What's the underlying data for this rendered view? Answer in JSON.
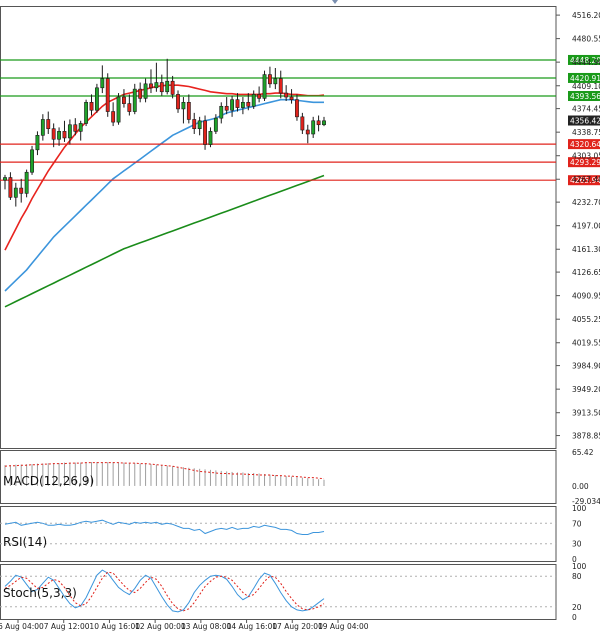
{
  "chart_data": {
    "type": "candlestick",
    "colors": {
      "bull": "#1fa12a",
      "bear": "#e0231c",
      "wick": "#1a1a1a",
      "ma_fast": "#e8231e",
      "ma_mid": "#3c95dc",
      "ma_slow": "#1a8c1a",
      "support": "#e0231c",
      "resistance": "#1a9a1a",
      "macd_hist": "#9e9e9e",
      "macd_signal": "#e0231c",
      "rsi": "#3c95dc",
      "stoch_main": "#3c95dc",
      "stoch_signal": "#e0231c",
      "grid_line": "#b0b0b0",
      "current_price_bg": "#222222"
    },
    "price_axis": {
      "ylim": [
        3860,
        4530
      ],
      "ticks": [
        "4516.20",
        "4480.55",
        "4444.90",
        "4409.10",
        "4374.45",
        "4338.75",
        "4303.05",
        "4267.40",
        "4232.70",
        "4197.00",
        "4161.30",
        "4126.65",
        "4090.95",
        "4055.25",
        "4019.55",
        "3984.90",
        "3949.20",
        "3913.50",
        "3878.85"
      ]
    },
    "current_price": {
      "label": "4356.42",
      "value": 4356.42
    },
    "levels": [
      {
        "label": "4448.20",
        "value": 4448.2,
        "kind": "resistance"
      },
      {
        "label": "4420.91",
        "value": 4420.91,
        "kind": "resistance"
      },
      {
        "label": "4393.56",
        "value": 4393.56,
        "kind": "resistance"
      },
      {
        "label": "4320.64",
        "value": 4320.64,
        "kind": "support"
      },
      {
        "label": "4293.29",
        "value": 4293.29,
        "kind": "support"
      },
      {
        "label": "4265.94",
        "value": 4265.94,
        "kind": "support"
      }
    ],
    "time_labels": [
      "6 Aug 04:00",
      "7 Aug 12:00",
      "10 Aug 16:00",
      "12 Aug 00:00",
      "13 Aug 08:00",
      "14 Aug 16:00",
      "17 Aug 20:00",
      "19 Aug 04:00"
    ],
    "candles": [
      {
        "o": 4266,
        "h": 4274,
        "l": 4252,
        "c": 4270
      },
      {
        "o": 4270,
        "h": 4278,
        "l": 4236,
        "c": 4240
      },
      {
        "o": 4240,
        "h": 4262,
        "l": 4226,
        "c": 4254
      },
      {
        "o": 4254,
        "h": 4268,
        "l": 4232,
        "c": 4246
      },
      {
        "o": 4246,
        "h": 4282,
        "l": 4240,
        "c": 4278
      },
      {
        "o": 4278,
        "h": 4318,
        "l": 4274,
        "c": 4312
      },
      {
        "o": 4312,
        "h": 4340,
        "l": 4304,
        "c": 4334
      },
      {
        "o": 4334,
        "h": 4366,
        "l": 4326,
        "c": 4358
      },
      {
        "o": 4358,
        "h": 4370,
        "l": 4336,
        "c": 4344
      },
      {
        "o": 4344,
        "h": 4352,
        "l": 4316,
        "c": 4328
      },
      {
        "o": 4328,
        "h": 4346,
        "l": 4318,
        "c": 4340
      },
      {
        "o": 4340,
        "h": 4356,
        "l": 4324,
        "c": 4330
      },
      {
        "o": 4330,
        "h": 4358,
        "l": 4320,
        "c": 4350
      },
      {
        "o": 4350,
        "h": 4360,
        "l": 4334,
        "c": 4340
      },
      {
        "o": 4340,
        "h": 4356,
        "l": 4326,
        "c": 4352
      },
      {
        "o": 4352,
        "h": 4388,
        "l": 4348,
        "c": 4384
      },
      {
        "o": 4384,
        "h": 4396,
        "l": 4364,
        "c": 4372
      },
      {
        "o": 4372,
        "h": 4412,
        "l": 4368,
        "c": 4406
      },
      {
        "o": 4406,
        "h": 4440,
        "l": 4398,
        "c": 4420
      },
      {
        "o": 4420,
        "h": 4428,
        "l": 4362,
        "c": 4370
      },
      {
        "o": 4370,
        "h": 4384,
        "l": 4348,
        "c": 4354
      },
      {
        "o": 4354,
        "h": 4398,
        "l": 4350,
        "c": 4392
      },
      {
        "o": 4392,
        "h": 4404,
        "l": 4376,
        "c": 4382
      },
      {
        "o": 4382,
        "h": 4396,
        "l": 4364,
        "c": 4370
      },
      {
        "o": 4370,
        "h": 4412,
        "l": 4366,
        "c": 4404
      },
      {
        "o": 4404,
        "h": 4414,
        "l": 4384,
        "c": 4390
      },
      {
        "o": 4390,
        "h": 4420,
        "l": 4384,
        "c": 4412
      },
      {
        "o": 4412,
        "h": 4434,
        "l": 4398,
        "c": 4406
      },
      {
        "o": 4406,
        "h": 4444,
        "l": 4400,
        "c": 4414
      },
      {
        "o": 4414,
        "h": 4426,
        "l": 4394,
        "c": 4400
      },
      {
        "o": 4400,
        "h": 4450,
        "l": 4396,
        "c": 4416
      },
      {
        "o": 4416,
        "h": 4424,
        "l": 4390,
        "c": 4396
      },
      {
        "o": 4396,
        "h": 4402,
        "l": 4368,
        "c": 4374
      },
      {
        "o": 4374,
        "h": 4392,
        "l": 4352,
        "c": 4384
      },
      {
        "o": 4384,
        "h": 4396,
        "l": 4352,
        "c": 4358
      },
      {
        "o": 4358,
        "h": 4368,
        "l": 4336,
        "c": 4344
      },
      {
        "o": 4344,
        "h": 4362,
        "l": 4334,
        "c": 4356
      },
      {
        "o": 4356,
        "h": 4364,
        "l": 4312,
        "c": 4320
      },
      {
        "o": 4320,
        "h": 4346,
        "l": 4316,
        "c": 4340
      },
      {
        "o": 4340,
        "h": 4366,
        "l": 4336,
        "c": 4360
      },
      {
        "o": 4360,
        "h": 4384,
        "l": 4352,
        "c": 4378
      },
      {
        "o": 4378,
        "h": 4392,
        "l": 4366,
        "c": 4372
      },
      {
        "o": 4372,
        "h": 4394,
        "l": 4362,
        "c": 4388
      },
      {
        "o": 4388,
        "h": 4398,
        "l": 4370,
        "c": 4376
      },
      {
        "o": 4376,
        "h": 4392,
        "l": 4366,
        "c": 4384
      },
      {
        "o": 4384,
        "h": 4398,
        "l": 4372,
        "c": 4378
      },
      {
        "o": 4378,
        "h": 4402,
        "l": 4374,
        "c": 4396
      },
      {
        "o": 4396,
        "h": 4408,
        "l": 4384,
        "c": 4390
      },
      {
        "o": 4390,
        "h": 4432,
        "l": 4386,
        "c": 4426
      },
      {
        "o": 4426,
        "h": 4438,
        "l": 4406,
        "c": 4412
      },
      {
        "o": 4412,
        "h": 4436,
        "l": 4404,
        "c": 4420
      },
      {
        "o": 4420,
        "h": 4432,
        "l": 4390,
        "c": 4398
      },
      {
        "o": 4398,
        "h": 4410,
        "l": 4386,
        "c": 4392
      },
      {
        "o": 4392,
        "h": 4404,
        "l": 4382,
        "c": 4388
      },
      {
        "o": 4388,
        "h": 4396,
        "l": 4356,
        "c": 4362
      },
      {
        "o": 4362,
        "h": 4368,
        "l": 4336,
        "c": 4342
      },
      {
        "o": 4342,
        "h": 4350,
        "l": 4322,
        "c": 4336
      },
      {
        "o": 4336,
        "h": 4362,
        "l": 4330,
        "c": 4356
      },
      {
        "o": 4356,
        "h": 4364,
        "l": 4340,
        "c": 4350
      },
      {
        "o": 4350,
        "h": 4362,
        "l": 4348,
        "c": 4356
      }
    ],
    "moving_averages": [
      {
        "color_key": "ma_fast",
        "values": [
          4160,
          4176,
          4192,
          4208,
          4222,
          4238,
          4252,
          4266,
          4280,
          4292,
          4304,
          4316,
          4326,
          4336,
          4346,
          4354,
          4362,
          4370,
          4378,
          4384,
          4388,
          4392,
          4396,
          4398,
          4400,
          4402,
          4404,
          4406,
          4408,
          4409,
          4410,
          4410,
          4410,
          4409,
          4408,
          4406,
          4404,
          4402,
          4400,
          4399,
          4398,
          4397,
          4397,
          4396,
          4396,
          4396,
          4396,
          4396,
          4397,
          4397,
          4398,
          4398,
          4397,
          4396,
          4396,
          4395,
          4394,
          4394,
          4394,
          4395
        ]
      },
      {
        "color_key": "ma_mid",
        "values": [
          4098,
          4106,
          4114,
          4122,
          4130,
          4140,
          4150,
          4160,
          4170,
          4180,
          4188,
          4196,
          4204,
          4212,
          4220,
          4228,
          4236,
          4244,
          4252,
          4260,
          4268,
          4274,
          4280,
          4286,
          4292,
          4298,
          4304,
          4310,
          4316,
          4322,
          4328,
          4334,
          4338,
          4342,
          4346,
          4350,
          4354,
          4356,
          4358,
          4360,
          4364,
          4368,
          4370,
          4372,
          4374,
          4376,
          4378,
          4380,
          4382,
          4384,
          4386,
          4388,
          4388,
          4388,
          4387,
          4386,
          4385,
          4384,
          4384,
          4384
        ]
      },
      {
        "color_key": "ma_slow",
        "values": [
          4074,
          4078,
          4082,
          4086,
          4090,
          4094,
          4098,
          4102,
          4106,
          4110,
          4114,
          4118,
          4122,
          4126,
          4130,
          4134,
          4138,
          4142,
          4146,
          4150,
          4154,
          4158,
          4162,
          4165,
          4168,
          4171,
          4174,
          4177,
          4180,
          4183,
          4186,
          4189,
          4192,
          4195,
          4198,
          4201,
          4204,
          4207,
          4210,
          4213,
          4216,
          4219,
          4222,
          4225,
          4228,
          4231,
          4234,
          4237,
          4240,
          4243,
          4246,
          4249,
          4252,
          4255,
          4258,
          4261,
          4264,
          4267,
          4270,
          4273
        ]
      }
    ],
    "macd": {
      "label": "MACD(12,26,9)",
      "ylim": [
        -29.034,
        65.42
      ],
      "ticks": [
        "65.42",
        "0.00",
        "-29.034"
      ],
      "histogram": [
        40,
        40,
        41,
        41,
        42,
        42,
        43,
        43,
        44,
        44,
        44,
        45,
        45,
        45,
        45,
        46,
        46,
        46,
        46,
        46,
        46,
        45,
        45,
        44,
        44,
        43,
        43,
        42,
        41,
        40,
        39,
        38,
        37,
        36,
        35,
        34,
        33,
        32,
        31,
        30,
        29,
        28,
        27,
        26,
        26,
        25,
        25,
        24,
        23,
        22,
        21,
        20,
        19,
        18,
        17,
        16,
        15,
        14,
        13,
        12
      ],
      "signal": [
        38,
        39,
        39,
        40,
        40,
        41,
        41,
        42,
        42,
        43,
        43,
        43,
        44,
        44,
        44,
        45,
        45,
        45,
        45,
        45,
        45,
        45,
        44,
        44,
        44,
        43,
        43,
        42,
        41,
        40,
        39,
        38,
        36,
        34,
        32,
        30,
        28,
        27,
        26,
        25,
        24,
        24,
        23,
        23,
        23,
        22,
        22,
        21,
        21,
        21,
        20,
        20,
        19,
        19,
        18,
        17,
        16,
        16,
        15,
        14
      ]
    },
    "rsi": {
      "label": "RSI(14)",
      "ylim": [
        0,
        100
      ],
      "ticks": [
        "100",
        "70",
        "30",
        "0"
      ],
      "values": [
        68,
        70,
        72,
        66,
        68,
        70,
        72,
        70,
        66,
        66,
        68,
        66,
        66,
        68,
        72,
        74,
        72,
        74,
        76,
        72,
        68,
        72,
        70,
        68,
        72,
        70,
        72,
        70,
        72,
        68,
        70,
        68,
        64,
        60,
        60,
        56,
        58,
        50,
        54,
        58,
        60,
        58,
        62,
        58,
        60,
        60,
        64,
        62,
        66,
        64,
        62,
        58,
        58,
        56,
        50,
        48,
        48,
        52,
        52,
        54
      ]
    },
    "stoch": {
      "label": "Stoch(5,3,3)",
      "ylim": [
        0,
        100
      ],
      "ticks": [
        "100",
        "80",
        "20",
        "0"
      ],
      "main": [
        60,
        70,
        82,
        78,
        64,
        50,
        54,
        66,
        78,
        72,
        56,
        40,
        26,
        18,
        22,
        38,
        60,
        82,
        92,
        86,
        72,
        58,
        50,
        44,
        56,
        72,
        82,
        76,
        58,
        40,
        24,
        12,
        10,
        14,
        28,
        48,
        62,
        72,
        80,
        82,
        80,
        74,
        60,
        44,
        34,
        40,
        56,
        74,
        86,
        82,
        66,
        48,
        32,
        20,
        14,
        12,
        14,
        20,
        28,
        36
      ],
      "signal": [
        56,
        62,
        70,
        78,
        76,
        66,
        56,
        58,
        66,
        74,
        70,
        58,
        42,
        28,
        22,
        26,
        40,
        58,
        76,
        88,
        86,
        74,
        62,
        52,
        48,
        56,
        68,
        78,
        74,
        60,
        42,
        26,
        16,
        12,
        16,
        28,
        44,
        60,
        70,
        78,
        80,
        78,
        72,
        60,
        48,
        40,
        44,
        56,
        70,
        80,
        78,
        66,
        50,
        36,
        24,
        16,
        14,
        16,
        20,
        26
      ]
    }
  }
}
